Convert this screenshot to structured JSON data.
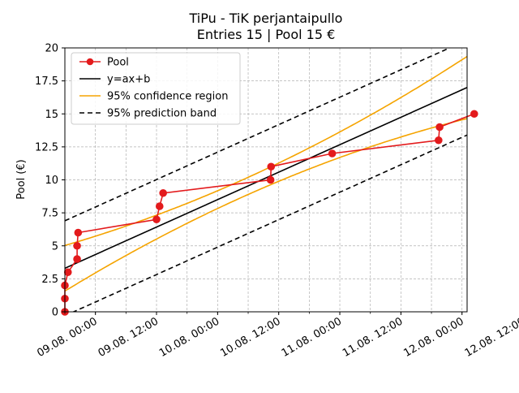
{
  "chart_data": {
    "type": "line",
    "title_line1": "TiPu - TiK perjantaipullo",
    "title_line2": "Entries 15 | Pool 15 €",
    "ylabel": "Pool (€)",
    "xlabel": "",
    "xlim_hours": [
      0,
      79
    ],
    "ylim": [
      0,
      20
    ],
    "grid": true,
    "legend_position": "top-left",
    "x_ticks": [
      {
        "h": 6,
        "label": "09.08. 00:00"
      },
      {
        "h": 18,
        "label": "09.08. 12:00"
      },
      {
        "h": 30,
        "label": "10.08. 00:00"
      },
      {
        "h": 42,
        "label": "10.08. 12:00"
      },
      {
        "h": 54,
        "label": "11.08. 00:00"
      },
      {
        "h": 66,
        "label": "11.08. 12:00"
      },
      {
        "h": 78,
        "label": "12.08. 00:00"
      },
      {
        "h": 90,
        "label": "12.08. 12:00"
      }
    ],
    "y_ticks": [
      {
        "v": 0,
        "label": "0"
      },
      {
        "v": 2.5,
        "label": "2.5"
      },
      {
        "v": 5,
        "label": "5"
      },
      {
        "v": 7.5,
        "label": "7.5"
      },
      {
        "v": 10,
        "label": "10"
      },
      {
        "v": 12.5,
        "label": "12.5"
      },
      {
        "v": 15,
        "label": "15"
      },
      {
        "v": 17.5,
        "label": "17.5"
      },
      {
        "v": 20,
        "label": "20"
      }
    ],
    "series": [
      {
        "name": "Pool",
        "kind": "line-marker",
        "color": "#e31a1c",
        "points": [
          {
            "x": 0.0,
            "y": 0
          },
          {
            "x": 0.0,
            "y": 1
          },
          {
            "x": 0.0,
            "y": 2
          },
          {
            "x": 0.6,
            "y": 3
          },
          {
            "x": 2.4,
            "y": 4
          },
          {
            "x": 2.4,
            "y": 5
          },
          {
            "x": 2.6,
            "y": 6
          },
          {
            "x": 18.0,
            "y": 7
          },
          {
            "x": 18.6,
            "y": 8
          },
          {
            "x": 19.3,
            "y": 9
          },
          {
            "x": 40.4,
            "y": 10
          },
          {
            "x": 40.5,
            "y": 11
          },
          {
            "x": 52.5,
            "y": 12
          },
          {
            "x": 73.4,
            "y": 13
          },
          {
            "x": 73.6,
            "y": 14
          },
          {
            "x": 80.4,
            "y": 15
          }
        ]
      },
      {
        "name": "y=ax+b",
        "kind": "fit",
        "color": "#000000",
        "a": 0.1734,
        "b": 3.3
      },
      {
        "name": "95% confidence region",
        "kind": "ci",
        "color": "#f5a400"
      },
      {
        "name": "95% prediction band",
        "kind": "pi",
        "color": "#000000",
        "offset": 3.6
      }
    ]
  }
}
